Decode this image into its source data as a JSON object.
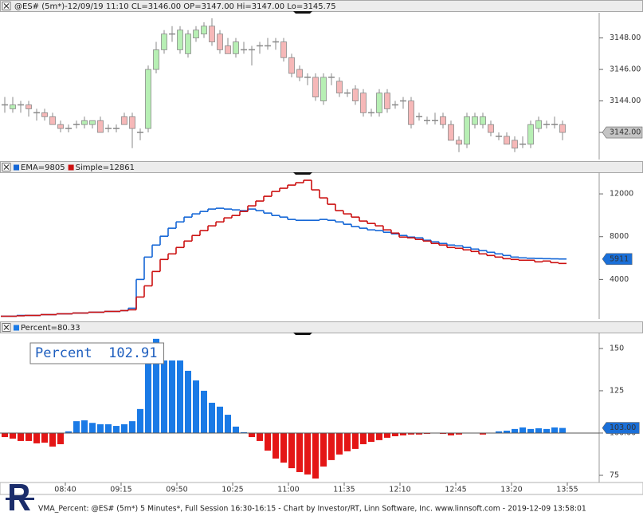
{
  "chart_data": [
    {
      "type": "candlestick",
      "title": "@ES# (5m*)-12/09/19 11:10 CL=3146.00 OP=3147.00 Hi=3147.00 Lo=3145.75",
      "open": [
        3143.75,
        3143.5,
        3143.75,
        3143.75,
        3143.25,
        3143.25,
        3143,
        3142.5,
        3142.25,
        3142.5,
        3142.5,
        3142.5,
        3142.75,
        3142.25,
        3142.25,
        3143,
        3143,
        3142,
        3142.25,
        3146,
        3147.25,
        3148.25,
        3147.25,
        3147,
        3148,
        3148.25,
        3148.75,
        3148.25,
        3147.5,
        3147,
        3147.25,
        3147.25,
        3147.5,
        3147.5,
        3147.75,
        3147.75,
        3146.75,
        3146,
        3145.5,
        3145.5,
        3144,
        3145.5,
        3145.25,
        3144.5,
        3144.75,
        3144.5,
        3143.25,
        3143.25,
        3144.5,
        3143.75,
        3144,
        3144,
        3143,
        3142.75,
        3142.75,
        3143,
        3142.5,
        3141.5,
        3141.25,
        3142.5,
        3142.5,
        3142.5,
        3141.75,
        3141.75,
        3141.5,
        3141.25,
        3141.25,
        3142.25,
        3142.5,
        3142.5,
        3142.5
      ],
      "high": [
        3144.25,
        3144.25,
        3144,
        3144,
        3143.5,
        3143.5,
        3143.25,
        3142.75,
        3142.5,
        3142.75,
        3143,
        3142.75,
        3143,
        3142.5,
        3142.5,
        3143.25,
        3143.25,
        3142.25,
        3146.25,
        3147.75,
        3148.5,
        3148.75,
        3148.75,
        3148.5,
        3148.75,
        3149,
        3149.25,
        3148.5,
        3148,
        3148,
        3147.75,
        3147.5,
        3147.75,
        3148,
        3148,
        3148,
        3147,
        3146.25,
        3145.75,
        3145.75,
        3145.75,
        3145.75,
        3145.5,
        3144.75,
        3145,
        3144.75,
        3143.5,
        3144.75,
        3144.75,
        3144,
        3144.25,
        3144.25,
        3143.25,
        3143,
        3143.25,
        3143.25,
        3142.75,
        3141.75,
        3143.25,
        3143.25,
        3143.25,
        3142.75,
        3142,
        3142,
        3141.75,
        3141.75,
        3142.75,
        3143,
        3142.75,
        3143,
        3142.75
      ],
      "low": [
        3143.25,
        3143.25,
        3143.25,
        3143,
        3142.75,
        3142.75,
        3142.5,
        3142,
        3142,
        3142.25,
        3142.25,
        3142.25,
        3142,
        3142,
        3142,
        3142.5,
        3141,
        3141.5,
        3142,
        3145.75,
        3147,
        3147.75,
        3147,
        3146.75,
        3147.75,
        3148,
        3147.5,
        3147,
        3147,
        3146.75,
        3147,
        3146.25,
        3147,
        3147.25,
        3147.25,
        3146.5,
        3145.5,
        3145.25,
        3145,
        3144,
        3143.75,
        3145,
        3144.25,
        3144.25,
        3143.75,
        3143,
        3143,
        3143,
        3143.25,
        3143.5,
        3143.5,
        3142.25,
        3142.75,
        3142.5,
        3142.5,
        3142.25,
        3141.5,
        3140.75,
        3141,
        3142.25,
        3142.25,
        3141.75,
        3141.5,
        3141.25,
        3140.75,
        3141,
        3141,
        3142,
        3142.25,
        3142.25,
        3141.5
      ],
      "close": [
        3143.75,
        3143.75,
        3143.75,
        3143.5,
        3143.25,
        3143,
        3142.5,
        3142.25,
        3142.25,
        3142.5,
        3142.75,
        3142.75,
        3142,
        3142.25,
        3142.25,
        3142.5,
        3142.25,
        3142,
        3146,
        3147.25,
        3148.25,
        3148.25,
        3148.5,
        3148.25,
        3148.5,
        3148.75,
        3147.75,
        3147.25,
        3147,
        3147.75,
        3147.25,
        3147.25,
        3147.5,
        3147.5,
        3147.75,
        3146.75,
        3145.75,
        3145.5,
        3145.5,
        3144.25,
        3145.5,
        3145.5,
        3144.5,
        3144.5,
        3144,
        3143.25,
        3143.25,
        3144.5,
        3143.5,
        3143.75,
        3144,
        3142.5,
        3143,
        3142.75,
        3142.75,
        3142.5,
        3141.5,
        3141.25,
        3143,
        3143,
        3143,
        3142,
        3141.75,
        3141.25,
        3141,
        3141.25,
        3142.5,
        3142.75,
        3142.5,
        3142.5,
        3142
      ],
      "up_color": "#b7efb4",
      "down_color": "#f6b8b8",
      "ylim": [
        3140.28,
        3149.6
      ],
      "yticks": [
        {
          "value": 3142,
          "label": "3142.00"
        },
        {
          "value": 3144,
          "label": "3144.00"
        },
        {
          "value": 3146,
          "label": "3146.00"
        },
        {
          "value": 3148,
          "label": "3148.00"
        }
      ],
      "last_value": {
        "value": 3142,
        "label": "3142.00"
      },
      "last_value_color": "#c4c4c4"
    },
    {
      "type": "step-line",
      "series": [
        {
          "name": "EMA=9805",
          "color": "#1466d6",
          "values": [
            560,
            560,
            635,
            635,
            635,
            710,
            710,
            785,
            785,
            860,
            860,
            935,
            935,
            1010,
            1010,
            1085,
            1310,
            4000,
            6090,
            7215,
            8040,
            8790,
            9380,
            9830,
            10130,
            10355,
            10580,
            10655,
            10580,
            10505,
            10430,
            10580,
            10430,
            10205,
            9980,
            9830,
            9610,
            9530,
            9530,
            9530,
            9610,
            9530,
            9380,
            9160,
            8935,
            8790,
            8635,
            8560,
            8410,
            8260,
            8110,
            7960,
            7890,
            7665,
            7515,
            7365,
            7215,
            7140,
            6990,
            6840,
            6690,
            6540,
            6390,
            6240,
            6090,
            6020,
            5980,
            5960,
            5940,
            5925,
            5911
          ]
        },
        {
          "name": "Simple=12861",
          "color": "#cc1111",
          "values": [
            560,
            560,
            600,
            635,
            635,
            710,
            710,
            785,
            785,
            860,
            860,
            935,
            935,
            1010,
            1010,
            1085,
            1160,
            2355,
            3400,
            4745,
            5870,
            6390,
            6990,
            7590,
            8110,
            8560,
            9010,
            9380,
            9755,
            9980,
            10355,
            10880,
            11330,
            11775,
            12225,
            12525,
            12820,
            13045,
            13270,
            12375,
            11625,
            11030,
            10430,
            10130,
            9830,
            9460,
            9235,
            9010,
            8635,
            8335,
            7960,
            7890,
            7740,
            7590,
            7365,
            7215,
            6990,
            6915,
            6765,
            6615,
            6390,
            6240,
            6090,
            5940,
            5870,
            5795,
            5795,
            5645,
            5720,
            5570,
            5495
          ]
        }
      ],
      "ylim": [
        300,
        14020
      ],
      "yticks": [
        4000,
        8000,
        12000
      ],
      "last_value": 5911,
      "last_value_color": "#1a6fd8"
    },
    {
      "type": "histogram-bar",
      "legend": "Percent=80.33",
      "annotation": "Percent  102.91",
      "categories": [
        null,
        null,
        null,
        null,
        null,
        null,
        null,
        "08:40",
        null,
        null,
        null,
        null,
        null,
        null,
        "09:15",
        null,
        null,
        null,
        null,
        null,
        null,
        "09:50",
        null,
        null,
        null,
        null,
        null,
        null,
        "10:25",
        null,
        null,
        null,
        null,
        null,
        null,
        "11:00",
        null,
        null,
        null,
        null,
        null,
        null,
        "11:35",
        null,
        null,
        null,
        null,
        null,
        null,
        "12:10",
        null,
        null,
        null,
        null,
        null,
        null,
        "12:45",
        null,
        null,
        null,
        null,
        null,
        null,
        "13:20",
        null,
        null,
        null,
        null,
        null,
        null,
        "13:55"
      ],
      "values": [
        97.6,
        96.7,
        95.3,
        95.3,
        93.9,
        94.3,
        92,
        93.4,
        101,
        107,
        107.5,
        106,
        105.2,
        105.2,
        104.2,
        105.2,
        107,
        114.2,
        142.9,
        155.7,
        142.9,
        142.9,
        142.9,
        136.8,
        131.1,
        125,
        117.9,
        115.6,
        110.8,
        103.8,
        100.5,
        97.6,
        95.3,
        89.6,
        84.9,
        82.5,
        79.2,
        76.9,
        75.5,
        73.1,
        80.2,
        84,
        87.3,
        89.2,
        90.6,
        93.4,
        94.8,
        95.8,
        97.2,
        98.1,
        98.6,
        99.1,
        99.1,
        99.5,
        99.8,
        99.5,
        98.6,
        99.1,
        100.2,
        99.8,
        99.1,
        100.2,
        101,
        101.4,
        102.4,
        103.3,
        102.4,
        102.8,
        102.4,
        103.3,
        103
      ],
      "baseline": 100,
      "up_color": "#1a7ae6",
      "down_color": "#e41616",
      "ylim": [
        70.75,
        159.4
      ],
      "yticks": [
        75,
        {
          "value": 100,
          "label": "100.00"
        },
        125,
        150
      ],
      "last_value": {
        "value": 103,
        "label": "103.00"
      },
      "last_value_color": "#1a6fd8"
    }
  ],
  "footer": "VMA_Percent: @ES# (5m*) 5 Minutes*, Full Session 16:30-16:15 - Chart by Investor/RT, Linn Software, Inc. www.linnsoft.com - 2019-12-09 13:58:01"
}
